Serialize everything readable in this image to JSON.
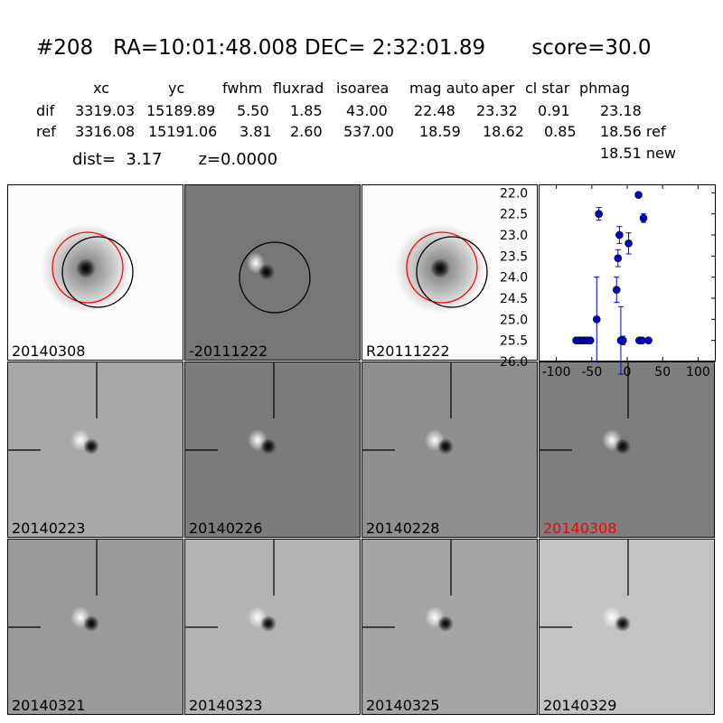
{
  "header": {
    "title": "#208   RA=10:01:48.008 DEC= 2:32:01.89       score=30.0",
    "columns": [
      "xc",
      "yc",
      "fwhm",
      "fluxrad",
      "isoarea",
      "mag auto",
      "aper",
      "cl star",
      "phmag"
    ],
    "rows": [
      {
        "label": "dif",
        "values": [
          "3319.03",
          "15189.89",
          "5.50",
          "1.85",
          "43.00",
          "22.48",
          "23.32",
          "0.91",
          "23.18"
        ]
      },
      {
        "label": "ref",
        "values": [
          "3316.08",
          "15191.06",
          "3.81",
          "2.60",
          "537.00",
          "18.59",
          "18.62",
          "0.85",
          "18.56 ref"
        ]
      }
    ],
    "dist_line": "dist=  3.17       z=0.0000",
    "new_phmag": "18.51 new"
  },
  "panels": [
    {
      "label": "20140308",
      "kind": "new",
      "label_color": "#000000"
    },
    {
      "label": "-20111222",
      "kind": "diff",
      "label_color": "#000000"
    },
    {
      "label": "R20111222",
      "kind": "ref",
      "label_color": "#000000"
    },
    {
      "label": "20140223",
      "kind": "stamp",
      "label_color": "#000000"
    },
    {
      "label": "20140226",
      "kind": "stamp",
      "label_color": "#000000"
    },
    {
      "label": "20140228",
      "kind": "stamp",
      "label_color": "#000000"
    },
    {
      "label": "20140308",
      "kind": "stamp",
      "label_color": "#ff0000"
    },
    {
      "label": "20140321",
      "kind": "stamp",
      "label_color": "#000000"
    },
    {
      "label": "20140323",
      "kind": "stamp",
      "label_color": "#000000"
    },
    {
      "label": "20140325",
      "kind": "stamp",
      "label_color": "#000000"
    },
    {
      "label": "20140329",
      "kind": "stamp",
      "label_color": "#000000"
    }
  ],
  "chart_data": {
    "type": "scatter",
    "title": "",
    "xlabel": "",
    "ylabel": "",
    "xlim": [
      -125,
      125
    ],
    "ylim": [
      26.0,
      21.8
    ],
    "x_ticks": [
      "-100",
      "-50",
      "0",
      "50",
      "100"
    ],
    "x_tick_values": [
      -100,
      -50,
      0,
      50,
      100
    ],
    "y_ticks": [
      "22.0",
      "22.5",
      "23.0",
      "23.5",
      "24.0",
      "24.5",
      "25.0",
      "25.5",
      "26.0"
    ],
    "y_tick_values": [
      22.0,
      22.5,
      23.0,
      23.5,
      24.0,
      24.5,
      25.0,
      25.5,
      26.0
    ],
    "marker_color": "#0000cc",
    "points": [
      {
        "x": -72,
        "y": 25.5,
        "err": 0.05
      },
      {
        "x": -68,
        "y": 25.5,
        "err": 0.05
      },
      {
        "x": -64,
        "y": 25.5,
        "err": 0.05
      },
      {
        "x": -60,
        "y": 25.5,
        "err": 0.05
      },
      {
        "x": -56,
        "y": 25.5,
        "err": 0.05
      },
      {
        "x": -52,
        "y": 25.5,
        "err": 0.05
      },
      {
        "x": -43,
        "y": 25.0,
        "err": 1.0
      },
      {
        "x": -40,
        "y": 22.5,
        "err": 0.15
      },
      {
        "x": -15,
        "y": 24.3,
        "err": 0.3
      },
      {
        "x": -13,
        "y": 23.55,
        "err": 0.2
      },
      {
        "x": -11,
        "y": 23.0,
        "err": 0.2
      },
      {
        "x": -9,
        "y": 25.5,
        "err": 0.8
      },
      {
        "x": -6,
        "y": 25.5,
        "err": 0.1
      },
      {
        "x": 2,
        "y": 23.2,
        "err": 0.25
      },
      {
        "x": 16,
        "y": 22.05,
        "err": 0.05
      },
      {
        "x": 17,
        "y": 25.5,
        "err": 0.05
      },
      {
        "x": 21,
        "y": 25.5,
        "err": 0.05
      },
      {
        "x": 23,
        "y": 22.6,
        "err": 0.1
      },
      {
        "x": 30,
        "y": 25.5,
        "err": 0.05
      }
    ]
  }
}
